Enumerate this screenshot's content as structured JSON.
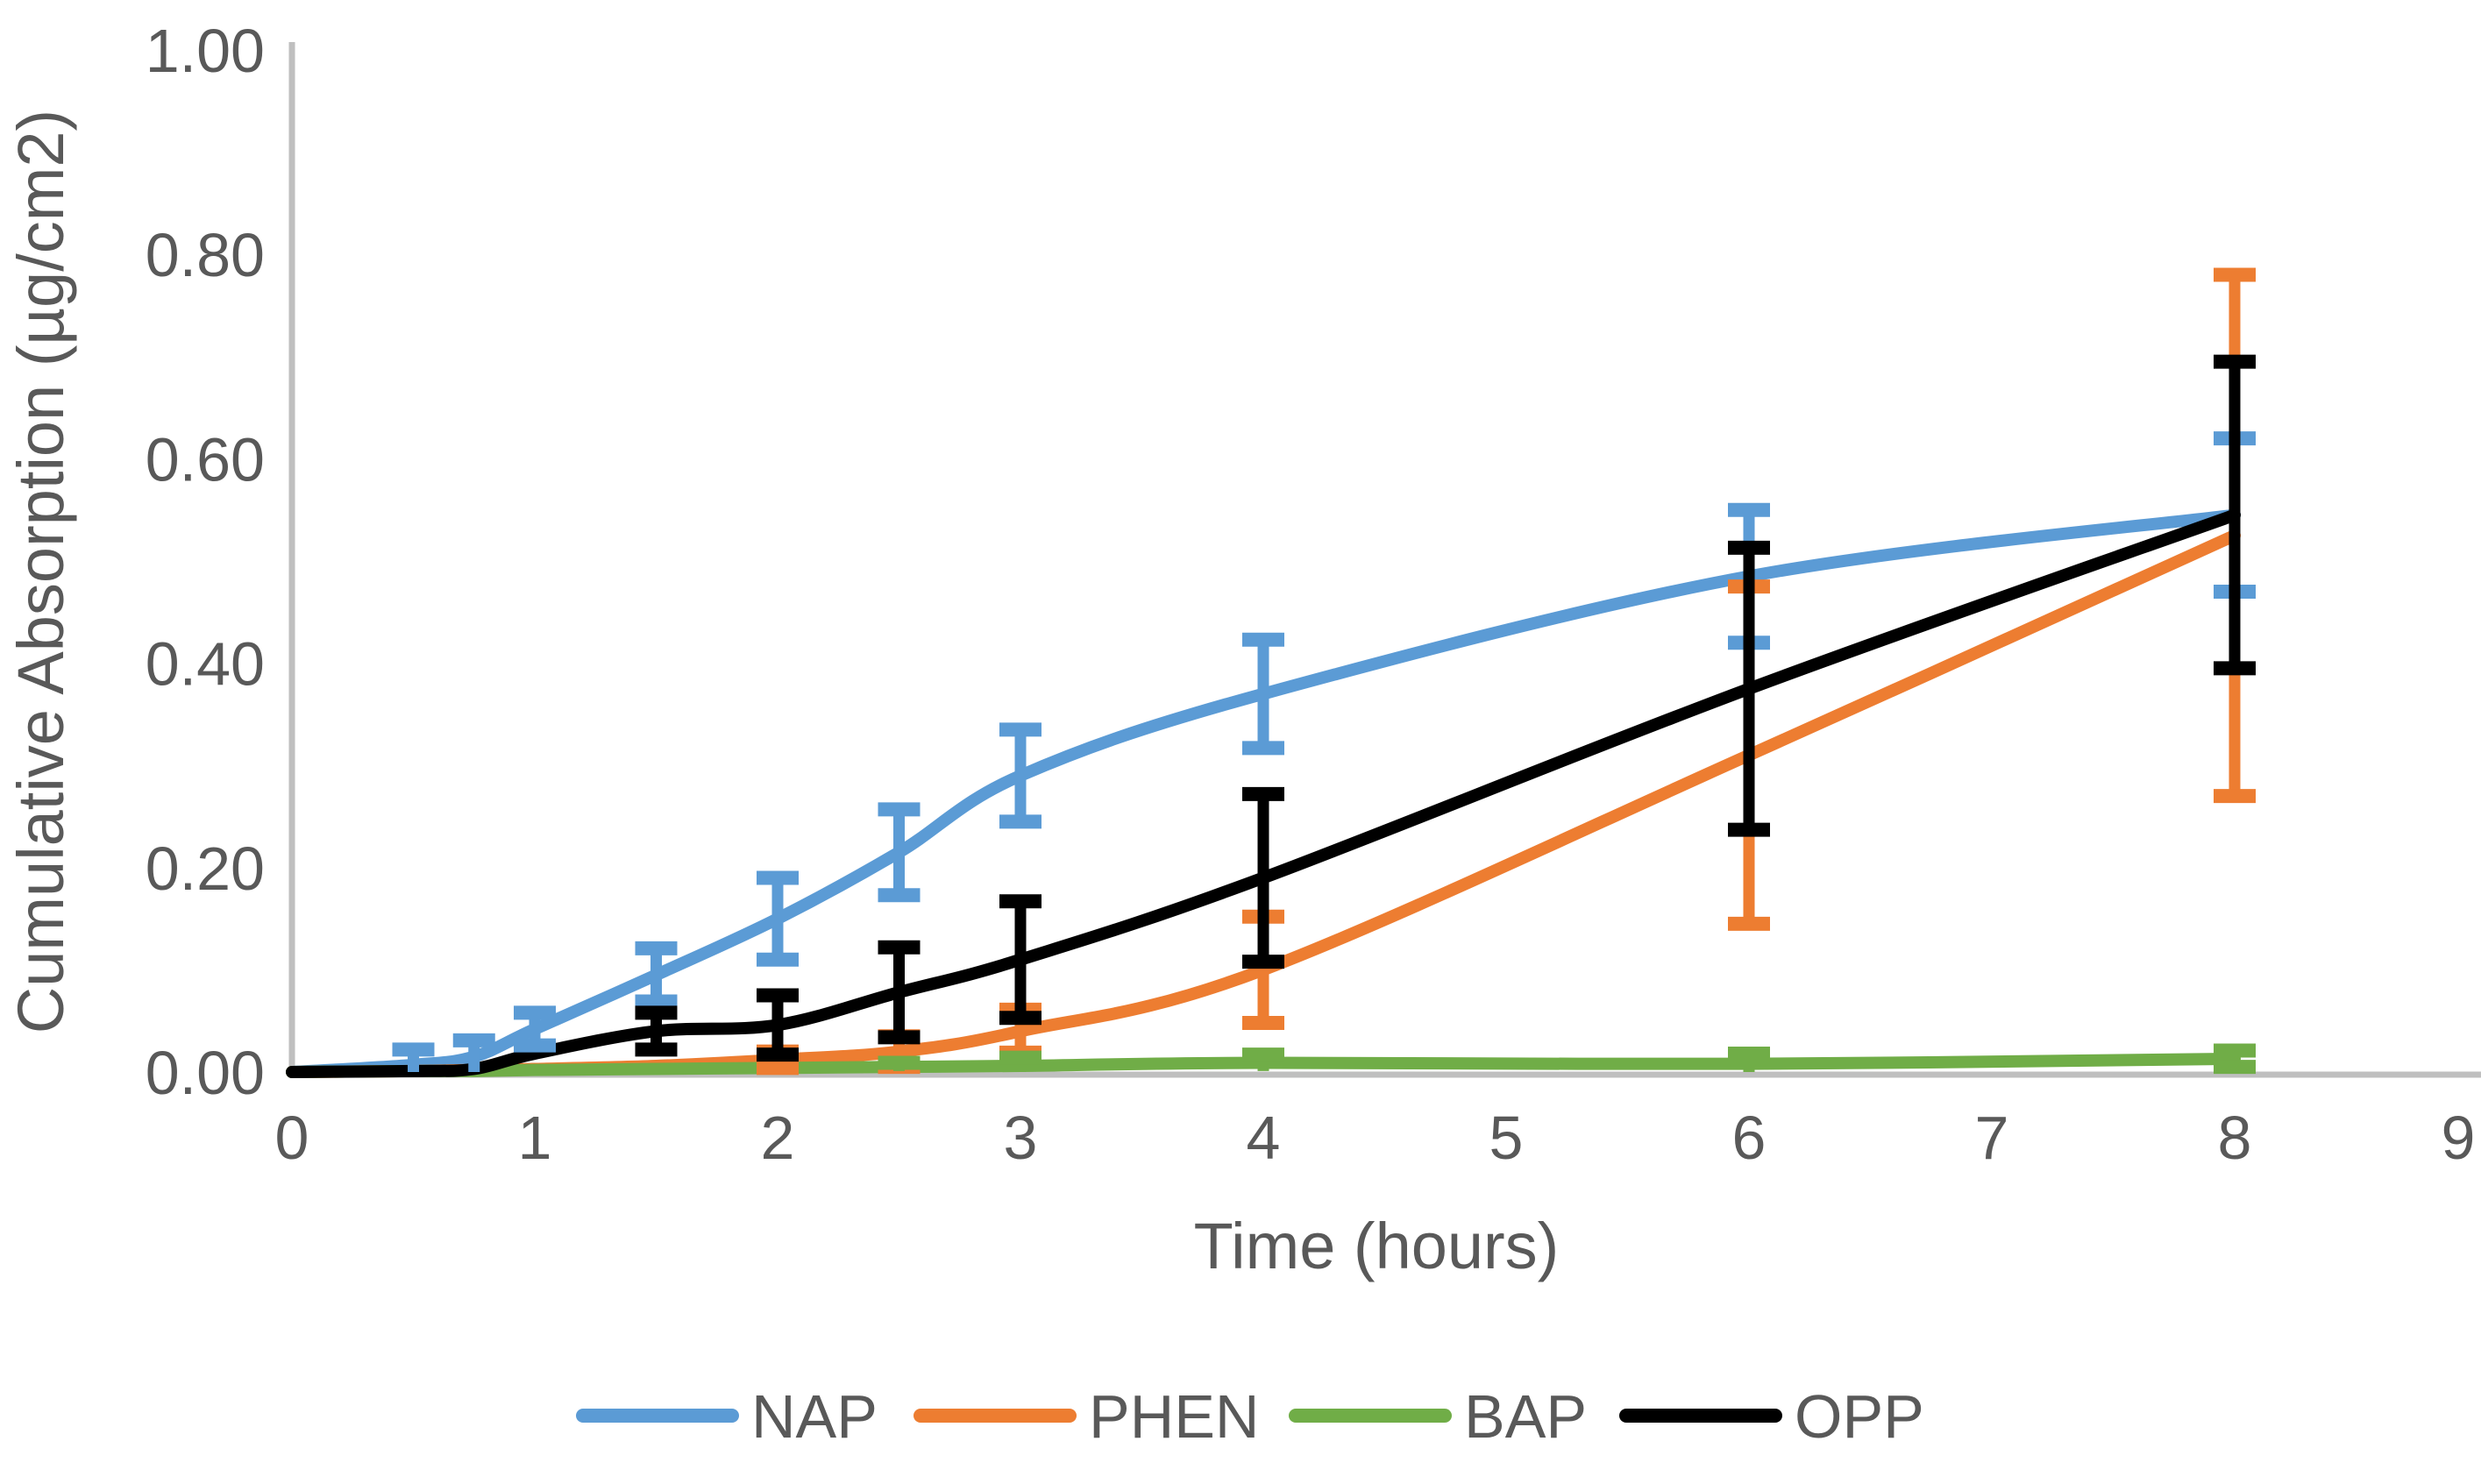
{
  "chart_data": {
    "type": "line",
    "xlabel": "Time (hours)",
    "ylabel": "Cumulative Absorption (µg/cm2)",
    "xlim": [
      0,
      9
    ],
    "ylim": [
      0,
      1.0
    ],
    "grid": false,
    "legend_position": "bottom",
    "x_ticks": [
      "0",
      "1",
      "2",
      "3",
      "4",
      "5",
      "6",
      "7",
      "8",
      "9"
    ],
    "y_ticks": [
      "0.00",
      "0.20",
      "0.40",
      "0.60",
      "0.80",
      "1.00"
    ],
    "x": [
      0,
      0.5,
      0.75,
      1,
      1.5,
      2,
      2.5,
      3,
      4,
      6,
      8
    ],
    "series": [
      {
        "name": "NAP",
        "color": "#5B9BD5",
        "values": [
          0,
          0.007,
          0.015,
          0.042,
          0.095,
          0.15,
          0.215,
          0.29,
          0.37,
          0.485,
          0.545
        ],
        "errors": [
          0,
          0.015,
          0.016,
          0.016,
          0.026,
          0.04,
          0.042,
          0.045,
          0.053,
          0.065,
          0.075
        ]
      },
      {
        "name": "PHEN",
        "color": "#ED7D31",
        "values": [
          0,
          0.001,
          0.002,
          0.003,
          0.006,
          0.012,
          0.02,
          0.04,
          0.1,
          0.31,
          0.525
        ],
        "errors": [
          0,
          0,
          0,
          0,
          0,
          0.008,
          0.015,
          0.021,
          0.052,
          0.165,
          0.255
        ]
      },
      {
        "name": "BAP",
        "color": "#70AD47",
        "values": [
          0,
          0.001,
          0.001,
          0.002,
          0.003,
          0.004,
          0.005,
          0.006,
          0.009,
          0.008,
          0.013
        ],
        "errors": [
          0,
          0,
          0,
          0,
          0,
          0,
          0.004,
          0.008,
          0.008,
          0.01,
          0.008
        ]
      },
      {
        "name": "OPP",
        "color": "#000000",
        "values": [
          0,
          0.001,
          0.003,
          0.018,
          0.04,
          0.046,
          0.078,
          0.11,
          0.19,
          0.375,
          0.545
        ],
        "errors": [
          0,
          0,
          0,
          0,
          0.018,
          0.029,
          0.044,
          0.057,
          0.082,
          0.138,
          0.15
        ]
      }
    ],
    "axis_color": "#BFBFBF",
    "text_color": "#595959"
  }
}
